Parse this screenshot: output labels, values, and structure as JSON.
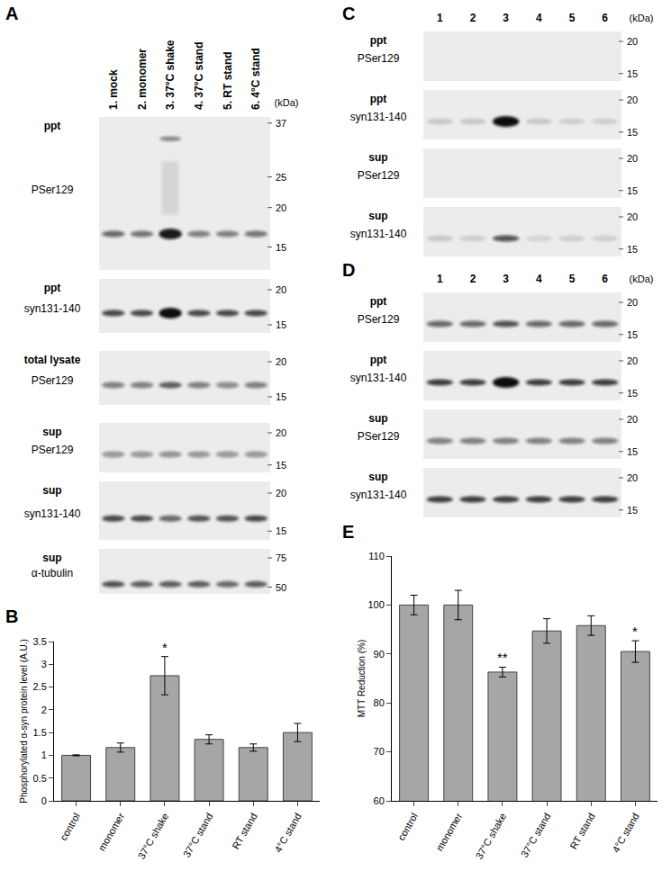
{
  "panels": [
    {
      "label": "A",
      "unit": "(kDa)",
      "lanes": [
        "1. mock",
        "2. monomer",
        "3. 37°C shake",
        "4. 37°C stand",
        "5. RT stand",
        "6. 4°C stand"
      ],
      "blots": [
        {
          "fraction": "ppt",
          "probe": "PSer129",
          "markers": [
            37,
            25,
            20,
            15
          ]
        },
        {
          "fraction": "ppt",
          "probe": "syn131-140",
          "markers": [
            20,
            15
          ]
        },
        {
          "fraction": "total lysate",
          "probe": "PSer129",
          "markers": [
            20,
            15
          ]
        },
        {
          "fraction": "sup",
          "probe": "PSer129",
          "markers": [
            20,
            15
          ]
        },
        {
          "fraction": "sup",
          "probe": "syn131-140",
          "markers": [
            20,
            15
          ]
        },
        {
          "fraction": "sup",
          "probe": "α-tubulin",
          "markers": [
            75,
            50
          ]
        }
      ]
    },
    {
      "label": "C",
      "unit": "(kDa)",
      "lanes": [
        "1",
        "2",
        "3",
        "4",
        "5",
        "6"
      ],
      "blots": [
        {
          "fraction": "ppt",
          "probe": "PSer129",
          "markers": [
            20,
            15
          ]
        },
        {
          "fraction": "ppt",
          "probe": "syn131-140",
          "markers": [
            20,
            15
          ]
        },
        {
          "fraction": "sup",
          "probe": "PSer129",
          "markers": [
            20,
            15
          ]
        },
        {
          "fraction": "sup",
          "probe": "syn131-140",
          "markers": [
            20,
            15
          ]
        }
      ]
    },
    {
      "label": "D",
      "unit": "(kDa)",
      "lanes": [
        "1",
        "2",
        "3",
        "4",
        "5",
        "6"
      ],
      "blots": [
        {
          "fraction": "ppt",
          "probe": "PSer129",
          "markers": [
            20,
            15
          ]
        },
        {
          "fraction": "ppt",
          "probe": "syn131-140",
          "markers": [
            20,
            15
          ]
        },
        {
          "fraction": "sup",
          "probe": "PSer129",
          "markers": [
            20,
            15
          ]
        },
        {
          "fraction": "sup",
          "probe": "syn131-140",
          "markers": [
            20,
            15
          ]
        }
      ]
    }
  ],
  "chart_data": [
    {
      "panel": "B",
      "type": "bar",
      "categories": [
        "control",
        "monomer",
        "37°C shake",
        "37°C stand",
        "RT stand",
        "4°C stand"
      ],
      "values": [
        1.0,
        1.17,
        2.75,
        1.35,
        1.17,
        1.5
      ],
      "errors": [
        0.01,
        0.1,
        0.42,
        0.1,
        0.08,
        0.2
      ],
      "color": "#a6a6a6",
      "y_label": "Phosphorylated α-syn protein level (A.U.)",
      "ylim": [
        0,
        3.5
      ],
      "yticks": [
        0,
        0.5,
        1,
        1.5,
        2,
        2.5,
        3,
        3.5
      ],
      "grid": false,
      "annotations": [
        {
          "category": "37°C shake",
          "text": "*"
        }
      ]
    },
    {
      "panel": "E",
      "type": "bar",
      "categories": [
        "control",
        "monomer",
        "37°C shake",
        "37°C stand",
        "RT stand",
        "4°C stand"
      ],
      "values": [
        100,
        100,
        86.3,
        94.7,
        95.8,
        90.5
      ],
      "errors": [
        2,
        3,
        1,
        2.5,
        2,
        2.2
      ],
      "color": "#a6a6a6",
      "y_label": "MTT Reduction (%)",
      "ylim": [
        60,
        110
      ],
      "yticks": [
        60,
        70,
        80,
        90,
        100,
        110
      ],
      "grid": false,
      "annotations": [
        {
          "category": "37°C shake",
          "text": "**"
        },
        {
          "category": "4°C stand",
          "text": "*"
        }
      ]
    }
  ]
}
